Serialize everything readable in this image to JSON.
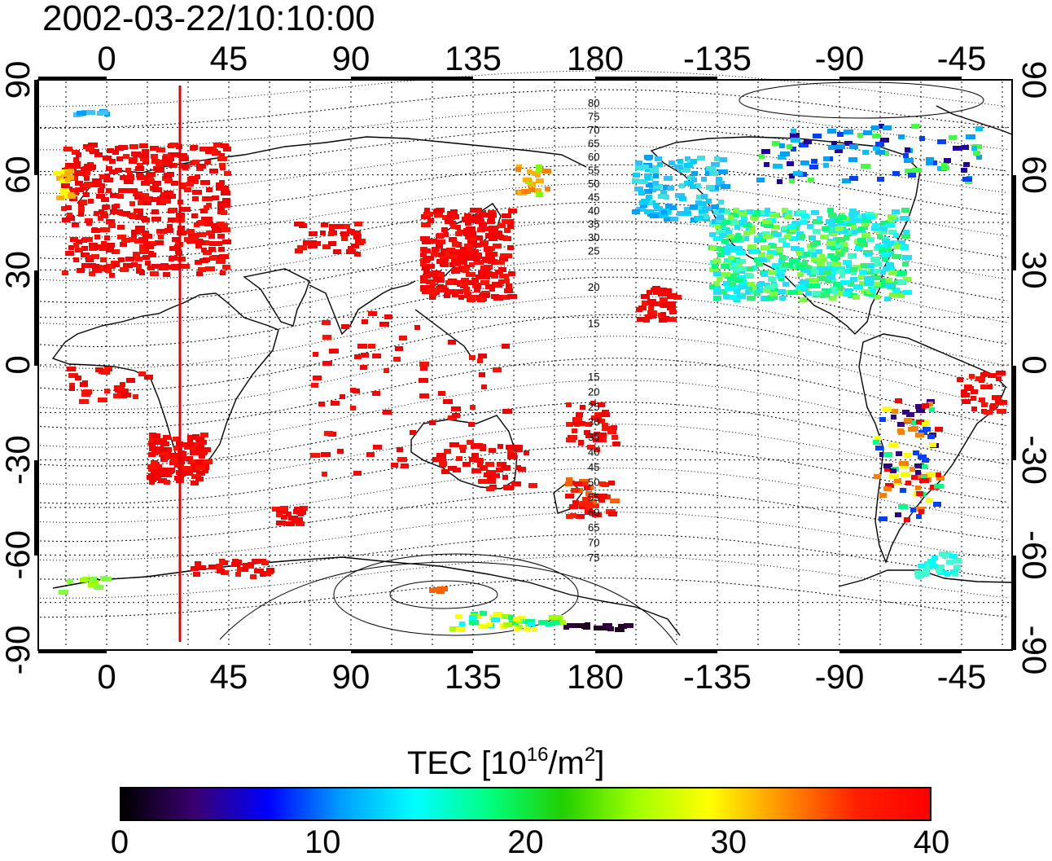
{
  "title": "2002-03-22/10:10:00",
  "map": {
    "lon_ticks": [
      "0",
      "45",
      "90",
      "135",
      "180",
      "-135",
      "-90",
      "-45"
    ],
    "lat_ticks": [
      "90",
      "60",
      "30",
      "0",
      "-30",
      "-60",
      "-90"
    ],
    "contour_labels_north": [
      "80",
      "75",
      "70",
      "65",
      "60",
      "55",
      "50",
      "45",
      "40",
      "35",
      "30",
      "25",
      "20",
      "15"
    ],
    "contour_labels_south": [
      "15",
      "20",
      "25",
      "30",
      "35",
      "40",
      "45",
      "50",
      "55",
      "60",
      "65",
      "70",
      "75"
    ],
    "marker_line_color": "#e00000"
  },
  "colorbar": {
    "label_main": "TEC  [10",
    "label_exp1": "16",
    "label_mid": "/m",
    "label_exp2": "2",
    "label_end": "]",
    "ticks": [
      "0",
      "10",
      "20",
      "30",
      "40"
    ],
    "colors": [
      "#000000",
      "#3a0070",
      "#0000ff",
      "#00a0ff",
      "#00ffff",
      "#00ff80",
      "#20d000",
      "#a0ff00",
      "#ffff00",
      "#ff9000",
      "#ff2000",
      "#ff0000"
    ]
  }
}
